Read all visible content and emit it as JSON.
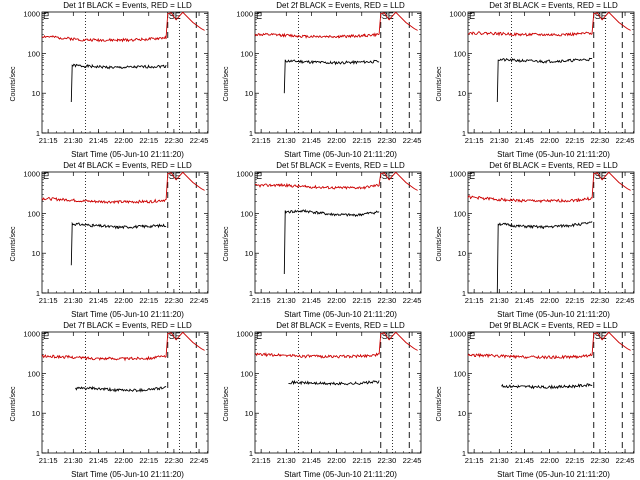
{
  "chart_data": [
    {
      "type": "line",
      "title": "Det 1f BLACK = Events, RED = LLD",
      "xlabel": "Start Time (05-Jun-10 21:11:20)",
      "ylabel": "Counts/sec",
      "xticks": [
        "21:15",
        "21:30",
        "21:45",
        "22:00",
        "22:15",
        "22:30",
        "22:45"
      ],
      "yticks": [
        "1",
        "10",
        "100",
        "1000"
      ],
      "log_y": true,
      "ylim": [
        1,
        1100
      ],
      "xlim_minutes": [
        0,
        99
      ],
      "markers": [
        {
          "label": "E",
          "minute": 0
        },
        {
          "label": "SE",
          "minute": 75
        }
      ],
      "dotted_lines_minutes": [
        26,
        82
      ],
      "dashed_lines_minutes": [
        75,
        92
      ],
      "series": [
        {
          "name": "Events",
          "color": "#000000",
          "points": [
            [
              17.5,
              6
            ],
            [
              18,
              50
            ],
            [
              30,
              47
            ],
            [
              45,
              44
            ],
            [
              60,
              46
            ],
            [
              74,
              48
            ]
          ]
        },
        {
          "name": "LLD",
          "color": "#cc0000",
          "points": [
            [
              0,
              270
            ],
            [
              10,
              250
            ],
            [
              25,
              220
            ],
            [
              45,
              215
            ],
            [
              65,
              230
            ],
            [
              74,
              250
            ],
            [
              75,
              1000
            ]
          ]
        }
      ]
    },
    {
      "type": "line",
      "title": "Det 2f BLACK = Events, RED = LLD",
      "xlabel": "Start Time (05-Jun-10 21:11:20)",
      "ylabel": "Counts/sec",
      "xticks": [
        "21:15",
        "21:30",
        "21:45",
        "22:00",
        "22:15",
        "22:30",
        "22:45"
      ],
      "yticks": [
        "1",
        "10",
        "100",
        "1000"
      ],
      "log_y": true,
      "ylim": [
        1,
        1100
      ],
      "xlim_minutes": [
        0,
        99
      ],
      "markers": [
        {
          "label": "E",
          "minute": 0
        },
        {
          "label": "SE",
          "minute": 75
        }
      ],
      "dotted_lines_minutes": [
        26,
        82
      ],
      "dashed_lines_minutes": [
        75,
        92
      ],
      "series": [
        {
          "name": "Events",
          "color": "#000000",
          "points": [
            [
              17.5,
              10
            ],
            [
              18,
              65
            ],
            [
              30,
              62
            ],
            [
              45,
              58
            ],
            [
              60,
              60
            ],
            [
              74,
              63
            ]
          ]
        },
        {
          "name": "LLD",
          "color": "#cc0000",
          "points": [
            [
              0,
              300
            ],
            [
              15,
              290
            ],
            [
              30,
              270
            ],
            [
              50,
              265
            ],
            [
              65,
              280
            ],
            [
              74,
              300
            ],
            [
              75,
              1000
            ]
          ]
        }
      ]
    },
    {
      "type": "line",
      "title": "Det 3f BLACK = Events, RED = LLD",
      "xlabel": "Start Time (05-Jun-10 21:11:20)",
      "ylabel": "Counts/sec",
      "xticks": [
        "21:15",
        "21:30",
        "21:45",
        "22:00",
        "22:15",
        "22:30",
        "22:45"
      ],
      "yticks": [
        "1",
        "10",
        "100",
        "1000"
      ],
      "log_y": true,
      "ylim": [
        1,
        1100
      ],
      "xlim_minutes": [
        0,
        99
      ],
      "markers": [
        {
          "label": "E",
          "minute": 0
        },
        {
          "label": "SE",
          "minute": 75
        }
      ],
      "dotted_lines_minutes": [
        26,
        82
      ],
      "dashed_lines_minutes": [
        75,
        92
      ],
      "series": [
        {
          "name": "Events",
          "color": "#000000",
          "points": [
            [
              17.5,
              6
            ],
            [
              18,
              70
            ],
            [
              30,
              66
            ],
            [
              45,
              63
            ],
            [
              60,
              66
            ],
            [
              74,
              72
            ]
          ]
        },
        {
          "name": "LLD",
          "color": "#cc0000",
          "points": [
            [
              0,
              330
            ],
            [
              15,
              320
            ],
            [
              30,
              300
            ],
            [
              50,
              295
            ],
            [
              65,
              305
            ],
            [
              74,
              330
            ],
            [
              75,
              1000
            ]
          ]
        }
      ]
    },
    {
      "type": "line",
      "title": "Det 4f BLACK = Events, RED = LLD",
      "xlabel": "Start Time (05-Jun-10 21:11:20)",
      "ylabel": "Counts/sec",
      "xticks": [
        "21:15",
        "21:30",
        "21:45",
        "22:00",
        "22:15",
        "22:30",
        "22:45"
      ],
      "yticks": [
        "1",
        "10",
        "100",
        "1000"
      ],
      "log_y": true,
      "ylim": [
        1,
        1100
      ],
      "xlim_minutes": [
        0,
        99
      ],
      "markers": [
        {
          "label": "E",
          "minute": 0
        },
        {
          "label": "SE",
          "minute": 75
        }
      ],
      "dotted_lines_minutes": [
        26,
        82
      ],
      "dashed_lines_minutes": [
        75,
        92
      ],
      "series": [
        {
          "name": "Events",
          "color": "#000000",
          "points": [
            [
              17.5,
              5
            ],
            [
              18,
              55
            ],
            [
              30,
              50
            ],
            [
              45,
              45
            ],
            [
              60,
              47
            ],
            [
              74,
              50
            ]
          ]
        },
        {
          "name": "LLD",
          "color": "#cc0000",
          "points": [
            [
              0,
              240
            ],
            [
              15,
              220
            ],
            [
              30,
              200
            ],
            [
              50,
              195
            ],
            [
              65,
              200
            ],
            [
              74,
              220
            ],
            [
              75,
              1000
            ]
          ]
        }
      ]
    },
    {
      "type": "line",
      "title": "Det 5f BLACK = Events, RED = LLD",
      "xlabel": "Start Time (05-Jun-10 21:11:20)",
      "ylabel": "Counts/sec",
      "xticks": [
        "21:15",
        "21:30",
        "21:45",
        "22:00",
        "22:15",
        "22:30",
        "22:45"
      ],
      "yticks": [
        "1",
        "10",
        "100",
        "1000"
      ],
      "log_y": true,
      "ylim": [
        1,
        1100
      ],
      "xlim_minutes": [
        0,
        99
      ],
      "markers": [
        {
          "label": "E",
          "minute": 0
        },
        {
          "label": "SE",
          "minute": 75
        }
      ],
      "dotted_lines_minutes": [
        26,
        82
      ],
      "dashed_lines_minutes": [
        75,
        92
      ],
      "series": [
        {
          "name": "Events",
          "color": "#000000",
          "points": [
            [
              17.5,
              3
            ],
            [
              18,
              110
            ],
            [
              30,
              115
            ],
            [
              45,
              95
            ],
            [
              60,
              90
            ],
            [
              74,
              110
            ]
          ]
        },
        {
          "name": "LLD",
          "color": "#cc0000",
          "points": [
            [
              0,
              500
            ],
            [
              15,
              520
            ],
            [
              30,
              470
            ],
            [
              50,
              440
            ],
            [
              65,
              450
            ],
            [
              74,
              520
            ],
            [
              75,
              1000
            ]
          ]
        }
      ]
    },
    {
      "type": "line",
      "title": "Det 6f BLACK = Events, RED = LLD",
      "xlabel": "Start Time (05-Jun-10 21:11:20)",
      "ylabel": "Counts/sec",
      "xticks": [
        "21:15",
        "21:30",
        "21:45",
        "22:00",
        "22:15",
        "22:30",
        "22:45"
      ],
      "yticks": [
        "1",
        "10",
        "100",
        "1000"
      ],
      "log_y": true,
      "ylim": [
        1,
        1100
      ],
      "xlim_minutes": [
        0,
        99
      ],
      "markers": [
        {
          "label": "E",
          "minute": 0
        },
        {
          "label": "SE",
          "minute": 75
        }
      ],
      "dotted_lines_minutes": [
        26,
        82
      ],
      "dashed_lines_minutes": [
        75,
        92
      ],
      "series": [
        {
          "name": "Events",
          "color": "#000000",
          "points": [
            [
              17.5,
              1
            ],
            [
              18,
              55
            ],
            [
              30,
              48
            ],
            [
              45,
              45
            ],
            [
              60,
              50
            ],
            [
              74,
              58
            ]
          ]
        },
        {
          "name": "LLD",
          "color": "#cc0000",
          "points": [
            [
              0,
              260
            ],
            [
              15,
              230
            ],
            [
              30,
              210
            ],
            [
              50,
              205
            ],
            [
              65,
              215
            ],
            [
              74,
              240
            ],
            [
              75,
              1000
            ]
          ]
        }
      ]
    },
    {
      "type": "line",
      "title": "Det 7f BLACK = Events, RED = LLD",
      "xlabel": "Start Time (05-Jun-10 21:11:20)",
      "ylabel": "Counts/sec",
      "xticks": [
        "21:15",
        "21:30",
        "21:45",
        "22:00",
        "22:15",
        "22:30",
        "22:45"
      ],
      "yticks": [
        "1",
        "10",
        "100",
        "1000"
      ],
      "log_y": true,
      "ylim": [
        1,
        1100
      ],
      "xlim_minutes": [
        0,
        99
      ],
      "markers": [
        {
          "label": "E",
          "minute": 0
        },
        {
          "label": "SE",
          "minute": 75
        }
      ],
      "dotted_lines_minutes": [
        26,
        82
      ],
      "dashed_lines_minutes": [
        75,
        92
      ],
      "series": [
        {
          "name": "Events",
          "color": "#000000",
          "points": [
            [
              20,
              42
            ],
            [
              30,
              42
            ],
            [
              45,
              38
            ],
            [
              60,
              38
            ],
            [
              74,
              44
            ]
          ]
        },
        {
          "name": "LLD",
          "color": "#cc0000",
          "points": [
            [
              0,
              270
            ],
            [
              15,
              260
            ],
            [
              30,
              240
            ],
            [
              50,
              235
            ],
            [
              65,
              245
            ],
            [
              74,
              270
            ],
            [
              75,
              1000
            ]
          ]
        }
      ]
    },
    {
      "type": "line",
      "title": "Det 8f BLACK = Events, RED = LLD",
      "xlabel": "Start Time (05-Jun-10 21:11:20)",
      "ylabel": "Counts/sec",
      "xticks": [
        "21:15",
        "21:30",
        "21:45",
        "22:00",
        "22:15",
        "22:30",
        "22:45"
      ],
      "yticks": [
        "1",
        "10",
        "100",
        "1000"
      ],
      "log_y": true,
      "ylim": [
        1,
        1100
      ],
      "xlim_minutes": [
        0,
        99
      ],
      "markers": [
        {
          "label": "E",
          "minute": 0
        },
        {
          "label": "SE",
          "minute": 75
        }
      ],
      "dotted_lines_minutes": [
        26,
        82
      ],
      "dashed_lines_minutes": [
        75,
        92
      ],
      "series": [
        {
          "name": "Events",
          "color": "#000000",
          "points": [
            [
              20,
              60
            ],
            [
              30,
              58
            ],
            [
              45,
              55
            ],
            [
              60,
              56
            ],
            [
              74,
              62
            ]
          ]
        },
        {
          "name": "LLD",
          "color": "#cc0000",
          "points": [
            [
              0,
              300
            ],
            [
              15,
              290
            ],
            [
              30,
              270
            ],
            [
              50,
              265
            ],
            [
              65,
              275
            ],
            [
              74,
              300
            ],
            [
              75,
              1000
            ]
          ]
        }
      ]
    },
    {
      "type": "line",
      "title": "Det 9f BLACK = Events, RED = LLD",
      "xlabel": "Start Time (05-Jun-10 21:11:20)",
      "ylabel": "Counts/sec",
      "xticks": [
        "21:15",
        "21:30",
        "21:45",
        "22:00",
        "22:15",
        "22:30",
        "22:45"
      ],
      "yticks": [
        "1",
        "10",
        "100",
        "1000"
      ],
      "log_y": true,
      "ylim": [
        1,
        1100
      ],
      "xlim_minutes": [
        0,
        99
      ],
      "markers": [
        {
          "label": "E",
          "minute": 0
        },
        {
          "label": "SE",
          "minute": 75
        }
      ],
      "dotted_lines_minutes": [
        26,
        82
      ],
      "dashed_lines_minutes": [
        75,
        92
      ],
      "series": [
        {
          "name": "Events",
          "color": "#000000",
          "points": [
            [
              20,
              48
            ],
            [
              30,
              47
            ],
            [
              45,
              45
            ],
            [
              60,
              47
            ],
            [
              74,
              52
            ]
          ]
        },
        {
          "name": "LLD",
          "color": "#cc0000",
          "points": [
            [
              0,
              290
            ],
            [
              15,
              280
            ],
            [
              30,
              260
            ],
            [
              50,
              255
            ],
            [
              65,
              265
            ],
            [
              74,
              290
            ],
            [
              75,
              1000
            ]
          ]
        }
      ]
    }
  ]
}
